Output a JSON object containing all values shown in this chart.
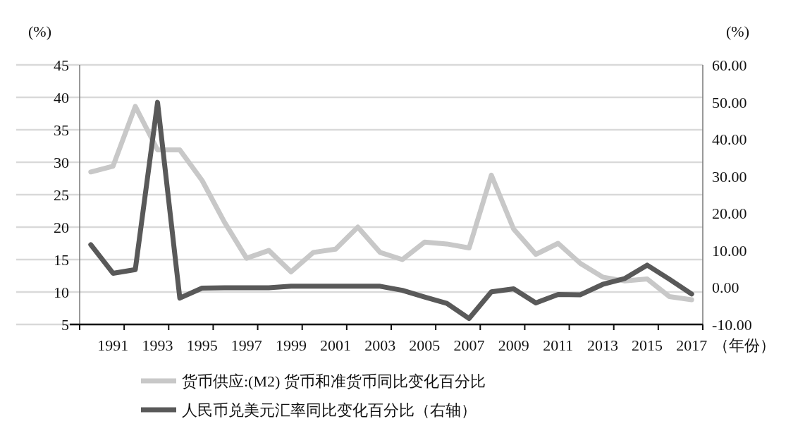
{
  "chart_data": {
    "type": "line",
    "ylabel": "(%)",
    "y2label": "(%)",
    "xlabel": "（年份）",
    "categories": [
      null,
      "1991",
      null,
      "1993",
      null,
      "1995",
      null,
      "1997",
      null,
      "1999",
      null,
      "2001",
      null,
      "2003",
      null,
      "2005",
      null,
      "2007",
      null,
      "2009",
      null,
      "2011",
      null,
      "2013",
      null,
      "2015",
      null,
      "2017"
    ],
    "series": [
      {
        "name": "货币供应:(M2) 货币和准货币同比变化百分比",
        "color": "#c8c8c8",
        "values": [
          28.5,
          29.4,
          38.6,
          31.9,
          31.9,
          27.2,
          20.8,
          15.2,
          16.4,
          13.1,
          16.1,
          16.6,
          20.0,
          16.1,
          15.0,
          17.7,
          17.4,
          16.8,
          28.0,
          19.7,
          15.8,
          17.5,
          14.4,
          12.3,
          11.7,
          12.0,
          9.3,
          8.8
        ]
      },
      {
        "name": "人民币兑美元汇率同比变化百分比（右轴）",
        "color": "#595959",
        "axis": "y2",
        "values": [
          11.5,
          3.8,
          4.8,
          49.9,
          -2.9,
          -0.2,
          -0.1,
          -0.1,
          -0.1,
          0.3,
          0.3,
          0.3,
          0.3,
          0.3,
          -0.8,
          -2.6,
          -4.3,
          -8.4,
          -1.2,
          -0.4,
          -4.2,
          -1.9,
          -2.0,
          0.8,
          2.4,
          6.0,
          2.2,
          -1.8
        ]
      }
    ],
    "ylim": [
      5,
      45
    ],
    "yticks": [
      5,
      10,
      15,
      20,
      25,
      30,
      35,
      40,
      45
    ],
    "y2lim": [
      -10,
      60
    ],
    "y2ticks": [
      {
        "value": -10,
        "label": "-10.00"
      },
      {
        "value": 0,
        "label": "0.00"
      },
      {
        "value": 10,
        "label": "10.00"
      },
      {
        "value": 20,
        "label": "20.00"
      },
      {
        "value": 30,
        "label": "30.00"
      },
      {
        "value": 40,
        "label": "40.00"
      },
      {
        "value": 50,
        "label": "50.00"
      },
      {
        "value": 60,
        "label": "60.00"
      }
    ],
    "grid": "y",
    "legend": "bottom"
  }
}
